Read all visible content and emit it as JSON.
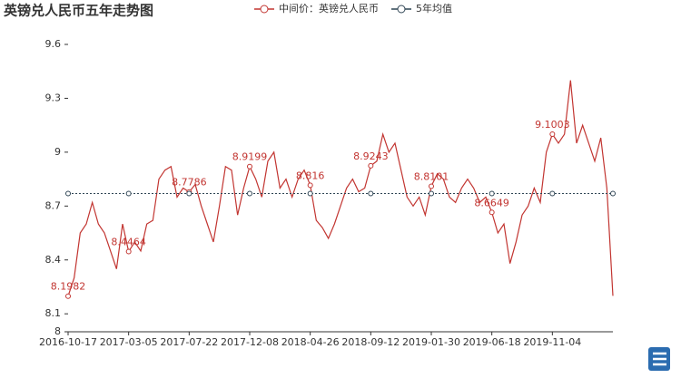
{
  "chart_data": {
    "type": "line",
    "title": "英镑兑人民币五年走势图",
    "categories": [
      "2016-10-17",
      null,
      null,
      null,
      null,
      null,
      null,
      null,
      null,
      null,
      "2017-03-05",
      null,
      null,
      null,
      null,
      null,
      null,
      null,
      null,
      null,
      "2017-07-22",
      null,
      null,
      null,
      null,
      null,
      null,
      null,
      null,
      null,
      "2017-12-08",
      null,
      null,
      null,
      null,
      null,
      null,
      null,
      null,
      null,
      "2018-04-26",
      null,
      null,
      null,
      null,
      null,
      null,
      null,
      null,
      null,
      "2018-09-12",
      null,
      null,
      null,
      null,
      null,
      null,
      null,
      null,
      null,
      "2019-01-30",
      null,
      null,
      null,
      null,
      null,
      null,
      null,
      null,
      null,
      "2019-06-18",
      null,
      null,
      null,
      null,
      null,
      null,
      null,
      null,
      null,
      "2019-11-04",
      null,
      null,
      null,
      null,
      null,
      null,
      null,
      null,
      null,
      null
    ],
    "series": [
      {
        "name": "中间价：英镑兑人民币",
        "color": "#c23531",
        "values": [
          8.1982,
          8.3,
          8.55,
          8.6,
          8.72,
          8.6,
          8.55,
          8.45,
          8.35,
          8.6,
          8.4464,
          8.5,
          8.45,
          8.6,
          8.62,
          8.85,
          8.9,
          8.92,
          8.75,
          8.8,
          8.7786,
          8.82,
          8.7,
          8.6,
          8.5,
          8.7,
          8.92,
          8.9,
          8.65,
          8.8,
          8.9199,
          8.85,
          8.75,
          8.95,
          9.0,
          8.8,
          8.85,
          8.75,
          8.85,
          8.9,
          8.816,
          8.62,
          8.58,
          8.52,
          8.6,
          8.7,
          8.8,
          8.85,
          8.78,
          8.8,
          8.9243,
          8.95,
          9.1,
          9.0,
          9.05,
          8.9,
          8.75,
          8.7,
          8.75,
          8.65,
          8.8101,
          8.88,
          8.85,
          8.75,
          8.72,
          8.8,
          8.85,
          8.8,
          8.72,
          8.75,
          8.6649,
          8.55,
          8.6,
          8.38,
          8.5,
          8.65,
          8.7,
          8.8,
          8.72,
          9.0,
          9.1003,
          9.05,
          9.1,
          9.4,
          9.05,
          9.15,
          9.05,
          8.95,
          9.08,
          8.8,
          8.2
        ],
        "data_labels": [
          8.1982,
          null,
          null,
          null,
          null,
          null,
          null,
          null,
          null,
          null,
          8.4464,
          null,
          null,
          null,
          null,
          null,
          null,
          null,
          null,
          null,
          8.7786,
          null,
          null,
          null,
          null,
          null,
          null,
          null,
          null,
          null,
          8.9199,
          null,
          null,
          null,
          null,
          null,
          null,
          null,
          null,
          null,
          8.816,
          null,
          null,
          null,
          null,
          null,
          null,
          null,
          null,
          null,
          8.9243,
          null,
          null,
          null,
          null,
          null,
          null,
          null,
          null,
          null,
          8.8101,
          null,
          null,
          null,
          null,
          null,
          null,
          null,
          null,
          null,
          8.6649,
          null,
          null,
          null,
          null,
          null,
          null,
          null,
          null,
          null,
          9.1003,
          null,
          null,
          null,
          null,
          null,
          null,
          null,
          null,
          null,
          null
        ]
      },
      {
        "name": "5年均值",
        "color": "#2f4554",
        "dashed": true,
        "values": [
          8.77,
          8.77,
          8.77,
          8.77,
          8.77,
          8.77,
          8.77,
          8.77,
          8.77,
          8.77,
          8.77,
          8.77,
          8.77,
          8.77,
          8.77,
          8.77,
          8.77,
          8.77,
          8.77,
          8.77,
          8.77,
          8.77,
          8.77,
          8.77,
          8.77,
          8.77,
          8.77,
          8.77,
          8.77,
          8.77,
          8.77,
          8.77,
          8.77,
          8.77,
          8.77,
          8.77,
          8.77,
          8.77,
          8.77,
          8.77,
          8.77,
          8.77,
          8.77,
          8.77,
          8.77,
          8.77,
          8.77,
          8.77,
          8.77,
          8.77,
          8.77,
          8.77,
          8.77,
          8.77,
          8.77,
          8.77,
          8.77,
          8.77,
          8.77,
          8.77,
          8.77,
          8.77,
          8.77,
          8.77,
          8.77,
          8.77,
          8.77,
          8.77,
          8.77,
          8.77,
          8.77,
          8.77,
          8.77,
          8.77,
          8.77,
          8.77,
          8.77,
          8.77,
          8.77,
          8.77,
          8.77,
          8.77,
          8.77,
          8.77,
          8.77,
          8.77,
          8.77,
          8.77,
          8.77,
          8.77,
          8.77
        ]
      }
    ],
    "ylim": [
      8,
      9.6
    ],
    "yticks": [
      8,
      8.1,
      8.4,
      8.7,
      9,
      9.3,
      9.6
    ],
    "grid": false
  }
}
